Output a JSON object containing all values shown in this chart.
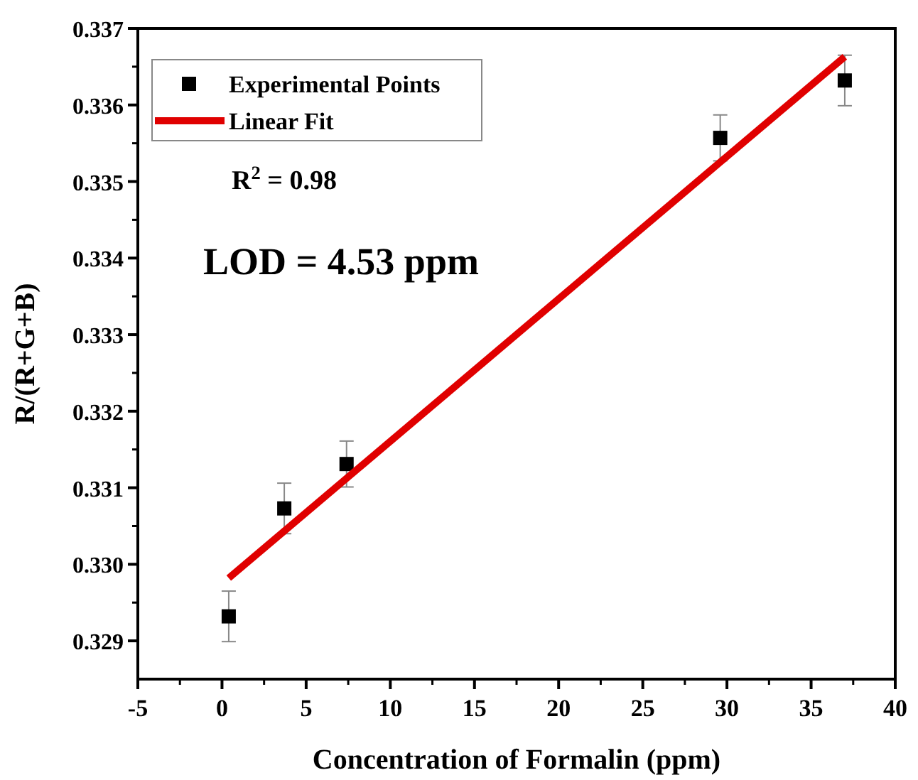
{
  "chart_data": {
    "type": "scatter",
    "xlabel": "Concentration of Formalin (ppm)",
    "ylabel": "R/(R+G+B)",
    "xlim": [
      -5,
      40
    ],
    "xticks": [
      -5,
      0,
      5,
      10,
      15,
      20,
      25,
      30,
      35,
      40
    ],
    "ylim": [
      0.3285,
      0.337
    ],
    "yticks": [
      0.329,
      {
        "value": 0.33,
        "label": "0.330"
      },
      0.331,
      0.332,
      0.333,
      0.334,
      0.335,
      0.336,
      0.337
    ],
    "series": [
      {
        "name": "Experimental Points",
        "color": "#000000",
        "marker": "square",
        "x": [
          0.4,
          3.7,
          7.4,
          29.6,
          37
        ],
        "values": [
          0.32932,
          0.33073,
          0.33131,
          0.33557,
          0.33632
        ],
        "errors": [
          0.00033,
          0.00033,
          0.0003,
          0.0003,
          0.00033
        ]
      },
      {
        "name": "Linear Fit",
        "type": "line",
        "color": "#e00000",
        "marker": "none",
        "x": [
          0.4,
          37
        ],
        "values": [
          0.32982,
          0.33663
        ]
      }
    ],
    "annotations": [
      "R$^{2}$ = 0.98",
      "LOD = 4.53 ppm"
    ],
    "legend": "top left",
    "grid": false
  }
}
